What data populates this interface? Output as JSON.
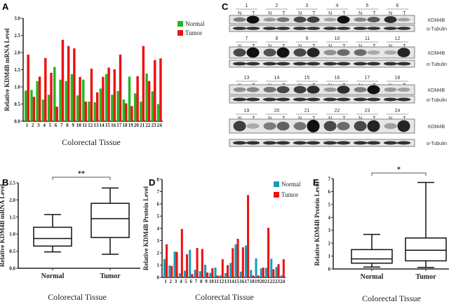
{
  "panels": {
    "A": "A",
    "B": "B",
    "C": "C",
    "D": "D",
    "E": "E"
  },
  "chart_data": [
    {
      "id": "A",
      "type": "bar",
      "title": "",
      "xlabel": "Colorectal Tissue",
      "ylabel": "Relative KDM4B mRNA Level",
      "categories": [
        "1",
        "2",
        "3",
        "4",
        "5",
        "6",
        "7",
        "8",
        "9",
        "10",
        "11",
        "12",
        "13",
        "14",
        "15",
        "16",
        "17",
        "18",
        "19",
        "20",
        "21",
        "22",
        "23",
        "24"
      ],
      "ylim": [
        0,
        3.0
      ],
      "yticks": [
        "0.0",
        "0.5",
        "1.0",
        "1.5",
        "2.0",
        "2.5",
        "3.0"
      ],
      "legend": "right",
      "series": [
        {
          "name": "Normal",
          "color": "#22b822",
          "values": [
            0.89,
            0.91,
            1.17,
            0.63,
            0.77,
            1.58,
            1.21,
            1.17,
            1.37,
            0.75,
            1.21,
            0.57,
            0.55,
            0.95,
            1.37,
            0.77,
            0.88,
            0.63,
            1.3,
            0.81,
            0.57,
            1.39,
            0.87,
            0.5
          ]
        },
        {
          "name": "Tumor",
          "color": "#ee1111",
          "values": [
            1.94,
            0.71,
            1.3,
            1.84,
            1.41,
            0.42,
            2.37,
            2.19,
            2.12,
            1.29,
            0.57,
            1.53,
            0.84,
            1.29,
            1.56,
            1.51,
            1.94,
            0.52,
            0.44,
            1.31,
            2.19,
            1.17,
            1.78,
            1.83
          ]
        }
      ]
    },
    {
      "id": "B",
      "type": "box",
      "xlabel": "Colorectal Tissue",
      "ylabel": "Relative KDM4B mRNA Level",
      "categories": [
        "Normal",
        "Tumor"
      ],
      "ylim": [
        0,
        2.5
      ],
      "yticks": [
        "0.0",
        "0.5",
        "1.0",
        "1.5",
        "2.0",
        "2.5"
      ],
      "significance": "**",
      "boxes": [
        {
          "min": 0.48,
          "q1": 0.65,
          "median": 0.87,
          "q3": 1.2,
          "max": 1.57
        },
        {
          "min": 0.41,
          "q1": 0.9,
          "median": 1.45,
          "q3": 1.9,
          "max": 2.35
        }
      ]
    },
    {
      "id": "D",
      "type": "bar",
      "xlabel": "Colorectal Tissue",
      "ylabel": "Relative KDM4B Protein Level",
      "categories": [
        "1",
        "2",
        "3",
        "4",
        "5",
        "6",
        "7",
        "8",
        "9",
        "10",
        "11",
        "12",
        "13",
        "14",
        "15",
        "16",
        "17",
        "18",
        "19",
        "20",
        "21",
        "22",
        "23",
        "24"
      ],
      "ylim": [
        0,
        8
      ],
      "yticks": [
        "0",
        "1",
        "2",
        "3",
        "4",
        "5",
        "6",
        "7",
        "8"
      ],
      "legend": "top-right",
      "series": [
        {
          "name": "Normal",
          "color": "#1a9bb5",
          "values": [
            1.5,
            0.97,
            2.1,
            0.33,
            0.55,
            2.25,
            0.62,
            0.5,
            1.03,
            0.37,
            0.8,
            0.17,
            0.35,
            1.18,
            2.7,
            0.47,
            2.6,
            0.6,
            1.55,
            0.73,
            0.78,
            1.52,
            0.85,
            0.17
          ]
        },
        {
          "name": "Tumor",
          "color": "#ee1111",
          "values": [
            2.7,
            0.93,
            2.08,
            3.95,
            1.88,
            0.27,
            2.4,
            2.32,
            0.4,
            0.75,
            0.15,
            1.48,
            1.0,
            2.38,
            3.15,
            2.45,
            6.72,
            0.15,
            0.15,
            0.8,
            4.05,
            0.66,
            1.08,
            1.48
          ]
        }
      ]
    },
    {
      "id": "E",
      "type": "box",
      "xlabel": "Colorectal Tissue",
      "ylabel": "Relative KDM4B Protein Level",
      "categories": [
        "Normal",
        "Tumor"
      ],
      "ylim": [
        0,
        7
      ],
      "yticks": [
        "0",
        "1",
        "2",
        "3",
        "4",
        "5",
        "6",
        "7"
      ],
      "significance": "*",
      "boxes": [
        {
          "min": 0.15,
          "q1": 0.45,
          "median": 0.78,
          "q3": 1.5,
          "max": 2.68
        },
        {
          "min": 0.12,
          "q1": 0.63,
          "median": 1.45,
          "q3": 2.4,
          "max": 6.7
        }
      ]
    }
  ],
  "blot": {
    "lane_labels": [
      "N",
      "T"
    ],
    "target_label": "KDM4B",
    "control_label": "α-Tubulin",
    "rows": [
      {
        "samples": [
          "1",
          "2",
          "3",
          "4",
          "5",
          "6"
        ],
        "kdm4b": [
          0.4,
          1.0,
          0.25,
          0.45,
          0.7,
          0.75,
          0.2,
          1.0,
          0.35,
          0.6,
          0.85,
          0.2
        ]
      },
      {
        "samples": [
          "7",
          "8",
          "9",
          "10",
          "11",
          "12"
        ],
        "kdm4b": [
          0.7,
          1.0,
          0.65,
          1.0,
          0.7,
          0.9,
          0.3,
          0.5,
          0.5,
          0.15,
          0.15,
          0.9
        ]
      },
      {
        "samples": [
          "13",
          "14",
          "15",
          "16",
          "17",
          "18"
        ],
        "kdm4b": [
          0.3,
          0.35,
          0.45,
          0.7,
          0.75,
          0.85,
          0.25,
          0.85,
          0.4,
          1.0,
          0.25,
          0.2
        ]
      },
      {
        "samples": [
          "19",
          "20",
          "21",
          "22",
          "23",
          "24"
        ],
        "kdm4b": [
          0.75,
          0.15,
          0.4,
          0.55,
          0.45,
          1.0,
          0.7,
          0.5,
          0.7,
          0.9,
          0.2,
          0.9
        ]
      }
    ]
  }
}
